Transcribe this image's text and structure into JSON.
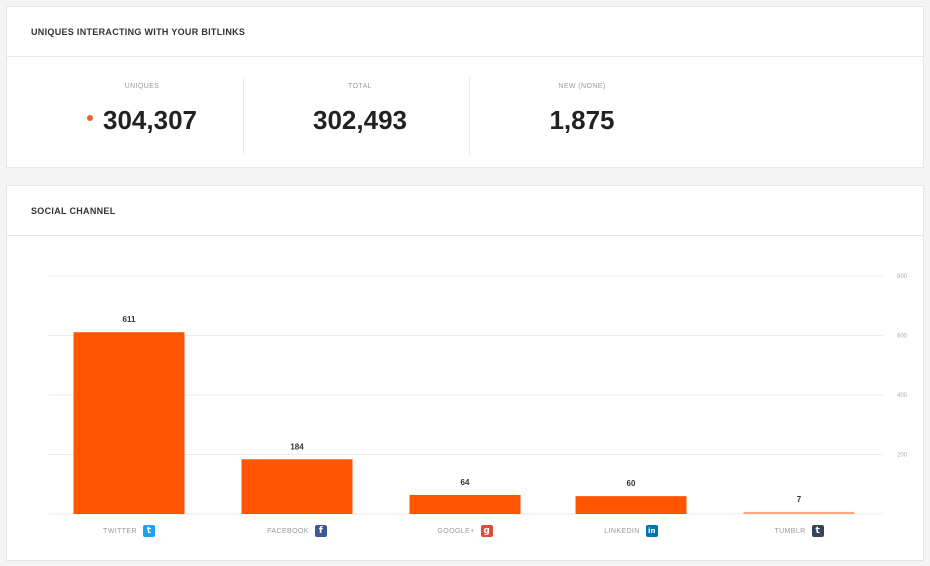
{
  "uniques_panel": {
    "title": "UNIQUES INTERACTING WITH YOUR BITLINKS",
    "stats": [
      {
        "label": "UNIQUES",
        "value": "304,307",
        "dot_color": "#ee6123"
      },
      {
        "label": "TOTAL",
        "value": "302,493"
      },
      {
        "label": "NEW (NONE)",
        "value": "1,875"
      }
    ]
  },
  "social_panel": {
    "title": "SOCIAL CHANNEL"
  },
  "colors": {
    "bar": "#ff5500",
    "accent_dot": "#ee6123"
  },
  "icons": {
    "twitter": {
      "name": "twitter-icon",
      "glyph": "t",
      "color": "#1da1f2"
    },
    "facebook": {
      "name": "facebook-icon",
      "glyph": "f",
      "color": "#3b5998"
    },
    "googleplus": {
      "name": "google-plus-icon",
      "glyph": "g",
      "color": "#dd4b39"
    },
    "linkedin": {
      "name": "linkedin-icon",
      "glyph": "in",
      "color": "#0077b5"
    },
    "tumblr": {
      "name": "tumblr-icon",
      "glyph": "t",
      "color": "#35465c"
    }
  },
  "chart_data": {
    "type": "bar",
    "categories": [
      "TWITTER",
      "FACEBOOK",
      "GOOGLE+",
      "LINKEDIN",
      "TUMBLR"
    ],
    "category_icons": [
      "twitter",
      "facebook",
      "googleplus",
      "linkedin",
      "tumblr"
    ],
    "values": [
      611,
      184,
      64,
      60,
      7
    ],
    "value_labels": [
      "611",
      "184",
      "64",
      "60",
      "7"
    ],
    "yticks": [
      200,
      400,
      600,
      800
    ],
    "ytick_labels": [
      "200",
      "400",
      "600",
      "800"
    ],
    "ylim": [
      0,
      800
    ],
    "grid": true,
    "title": "",
    "xlabel": "",
    "ylabel": ""
  }
}
